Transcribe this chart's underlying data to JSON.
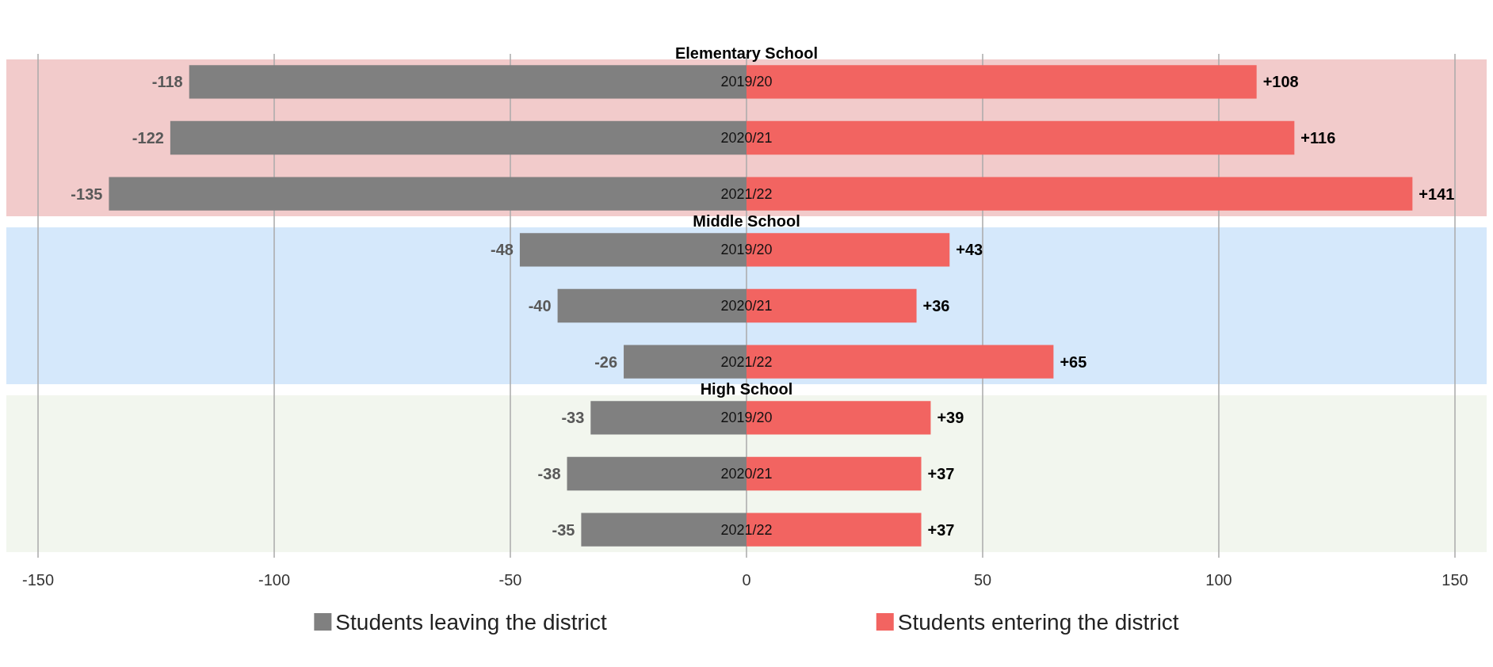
{
  "chart_data": {
    "type": "bar",
    "orientation": "horizontal",
    "stacked": true,
    "categories": [
      "2019/20",
      "2020/21",
      "2021/22",
      "2019/20",
      "2020/21",
      "2021/22",
      "2019/20",
      "2020/21",
      "2021/22"
    ],
    "series": [
      {
        "name": "Students leaving the district",
        "color": "#808080",
        "values": [
          -118,
          -122,
          -135,
          -48,
          -40,
          -26,
          -33,
          -38,
          -35
        ],
        "value_labels": [
          "-118",
          "-122",
          "-135",
          "-48",
          "-40",
          "-26",
          "-33",
          "-38",
          "-35"
        ]
      },
      {
        "name": "Students entering the district",
        "color": "#f26461",
        "values": [
          108,
          116,
          141,
          43,
          36,
          65,
          39,
          37,
          37
        ],
        "value_labels": [
          "+108",
          "+116",
          "+141",
          "+43",
          "+36",
          "+65",
          "+39",
          "+37",
          "+37"
        ]
      }
    ],
    "annotations": [
      "Elementary School",
      "Middle School",
      "High School"
    ],
    "xlim": [
      -150,
      150
    ],
    "xticks": [
      -150,
      -100,
      -50,
      0,
      50,
      100,
      150
    ],
    "grid": "x",
    "legend": "bottom"
  }
}
